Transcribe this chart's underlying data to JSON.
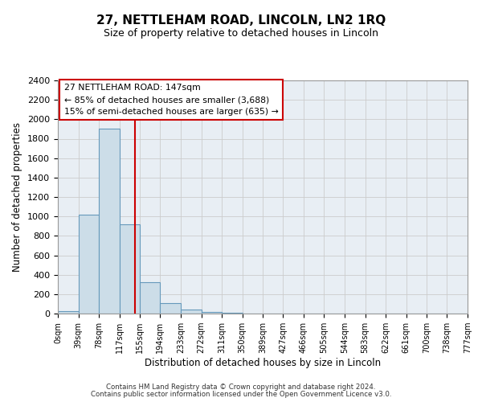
{
  "title": "27, NETTLEHAM ROAD, LINCOLN, LN2 1RQ",
  "subtitle": "Size of property relative to detached houses in Lincoln",
  "xlabel": "Distribution of detached houses by size in Lincoln",
  "ylabel": "Number of detached properties",
  "bin_edges": [
    0,
    39,
    78,
    117,
    155,
    194,
    233,
    272,
    311,
    350,
    389,
    427,
    466,
    505,
    544,
    583,
    622,
    661,
    700,
    738,
    777
  ],
  "bin_labels": [
    "0sqm",
    "39sqm",
    "78sqm",
    "117sqm",
    "155sqm",
    "194sqm",
    "233sqm",
    "272sqm",
    "311sqm",
    "350sqm",
    "389sqm",
    "427sqm",
    "466sqm",
    "505sqm",
    "544sqm",
    "583sqm",
    "622sqm",
    "661sqm",
    "700sqm",
    "738sqm",
    "777sqm"
  ],
  "bar_heights": [
    25,
    1020,
    1900,
    920,
    320,
    105,
    45,
    20,
    5,
    2,
    0,
    0,
    0,
    0,
    0,
    0,
    0,
    0,
    0,
    0
  ],
  "bar_color": "#ccdde8",
  "bar_edge_color": "#6699bb",
  "property_line_x": 147,
  "property_line_color": "#cc0000",
  "annotation_line1": "27 NETTLEHAM ROAD: 147sqm",
  "annotation_line2": "← 85% of detached houses are smaller (3,688)",
  "annotation_line3": "15% of semi-detached houses are larger (635) →",
  "annotation_box_edge_color": "#cc0000",
  "annotation_box_face_color": "white",
  "ylim": [
    0,
    2400
  ],
  "yticks": [
    0,
    200,
    400,
    600,
    800,
    1000,
    1200,
    1400,
    1600,
    1800,
    2000,
    2200,
    2400
  ],
  "grid_color": "#cccccc",
  "background_color": "#e8eef4",
  "footer_line1": "Contains HM Land Registry data © Crown copyright and database right 2024.",
  "footer_line2": "Contains public sector information licensed under the Open Government Licence v3.0."
}
